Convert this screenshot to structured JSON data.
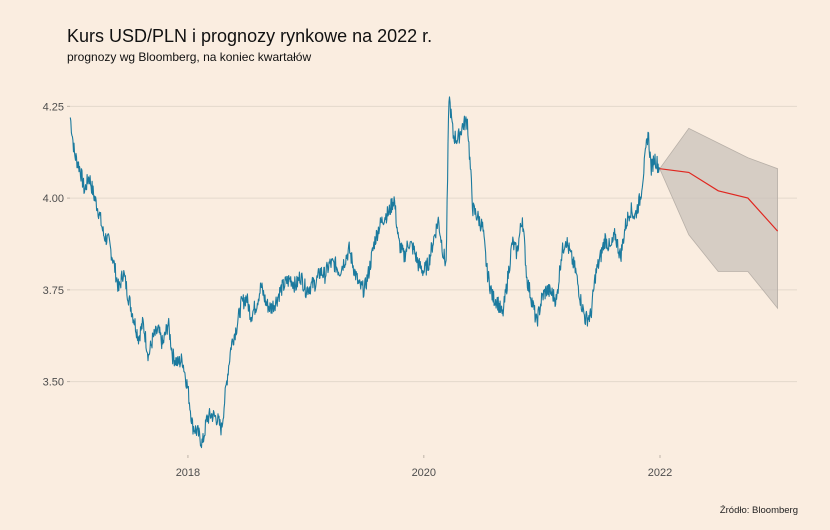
{
  "title": "Kurs USD/PLN i prognozy rynkowe na 2022 r.",
  "subtitle": "prognozy wg Bloomberg, na koniec kwartałów",
  "source": "Źródło: Bloomberg",
  "colors": {
    "background": "#faede0",
    "history_line": "#1b7a9e",
    "forecast_line": "#e0261f",
    "forecast_band": "#c9c2bb",
    "grid": "#e3d8cc"
  },
  "chart_data": {
    "type": "line",
    "title": "Kurs USD/PLN i prognozy rynkowe na 2022 r.",
    "subtitle": "prognozy wg Bloomberg, na koniec kwartałów",
    "xlabel": "",
    "ylabel": "",
    "x_ticks": [
      "2018",
      "2020",
      "2022"
    ],
    "y_ticks": [
      "3.50",
      "3.75",
      "4.00",
      "4.25"
    ],
    "ylim": [
      3.3,
      4.3
    ],
    "xlim": [
      "2017-01-01",
      "2023-03-01"
    ],
    "grid": true,
    "legend": "none",
    "series": [
      {
        "role": "historical",
        "points": [
          [
            "2017-01-02",
            4.22
          ],
          [
            "2017-01-15",
            4.12
          ],
          [
            "2017-02-01",
            4.08
          ],
          [
            "2017-02-15",
            4.02
          ],
          [
            "2017-03-01",
            4.06
          ],
          [
            "2017-03-15",
            4.01
          ],
          [
            "2017-04-01",
            3.96
          ],
          [
            "2017-04-15",
            3.9
          ],
          [
            "2017-05-01",
            3.88
          ],
          [
            "2017-05-15",
            3.83
          ],
          [
            "2017-06-01",
            3.75
          ],
          [
            "2017-06-15",
            3.8
          ],
          [
            "2017-07-01",
            3.73
          ],
          [
            "2017-07-15",
            3.68
          ],
          [
            "2017-08-01",
            3.62
          ],
          [
            "2017-08-15",
            3.66
          ],
          [
            "2017-09-01",
            3.57
          ],
          [
            "2017-09-15",
            3.62
          ],
          [
            "2017-10-01",
            3.64
          ],
          [
            "2017-10-15",
            3.6
          ],
          [
            "2017-11-01",
            3.66
          ],
          [
            "2017-11-15",
            3.57
          ],
          [
            "2017-12-01",
            3.55
          ],
          [
            "2017-12-15",
            3.56
          ],
          [
            "2018-01-01",
            3.48
          ],
          [
            "2018-01-15",
            3.38
          ],
          [
            "2018-02-01",
            3.36
          ],
          [
            "2018-02-15",
            3.33
          ],
          [
            "2018-03-01",
            3.4
          ],
          [
            "2018-03-15",
            3.41
          ],
          [
            "2018-04-01",
            3.4
          ],
          [
            "2018-04-15",
            3.37
          ],
          [
            "2018-05-01",
            3.5
          ],
          [
            "2018-05-15",
            3.6
          ],
          [
            "2018-06-01",
            3.65
          ],
          [
            "2018-06-15",
            3.71
          ],
          [
            "2018-07-01",
            3.73
          ],
          [
            "2018-07-15",
            3.68
          ],
          [
            "2018-08-01",
            3.71
          ],
          [
            "2018-08-15",
            3.76
          ],
          [
            "2018-09-01",
            3.71
          ],
          [
            "2018-09-15",
            3.7
          ],
          [
            "2018-10-01",
            3.72
          ],
          [
            "2018-10-15",
            3.75
          ],
          [
            "2018-11-01",
            3.77
          ],
          [
            "2018-11-15",
            3.78
          ],
          [
            "2018-12-01",
            3.76
          ],
          [
            "2018-12-15",
            3.79
          ],
          [
            "2019-01-01",
            3.75
          ],
          [
            "2019-01-15",
            3.76
          ],
          [
            "2019-02-01",
            3.77
          ],
          [
            "2019-02-15",
            3.8
          ],
          [
            "2019-03-01",
            3.79
          ],
          [
            "2019-03-15",
            3.82
          ],
          [
            "2019-04-01",
            3.82
          ],
          [
            "2019-04-15",
            3.8
          ],
          [
            "2019-05-01",
            3.83
          ],
          [
            "2019-05-15",
            3.86
          ],
          [
            "2019-06-01",
            3.8
          ],
          [
            "2019-06-15",
            3.76
          ],
          [
            "2019-07-01",
            3.75
          ],
          [
            "2019-07-15",
            3.8
          ],
          [
            "2019-08-01",
            3.88
          ],
          [
            "2019-08-15",
            3.92
          ],
          [
            "2019-09-01",
            3.95
          ],
          [
            "2019-09-15",
            3.96
          ],
          [
            "2019-10-01",
            4.0
          ],
          [
            "2019-10-15",
            3.88
          ],
          [
            "2019-11-01",
            3.84
          ],
          [
            "2019-11-15",
            3.88
          ],
          [
            "2019-12-01",
            3.86
          ],
          [
            "2019-12-15",
            3.82
          ],
          [
            "2020-01-01",
            3.8
          ],
          [
            "2020-01-15",
            3.82
          ],
          [
            "2020-02-01",
            3.89
          ],
          [
            "2020-02-15",
            3.94
          ],
          [
            "2020-03-01",
            3.85
          ],
          [
            "2020-03-10",
            3.82
          ],
          [
            "2020-03-19",
            4.28
          ],
          [
            "2020-04-01",
            4.17
          ],
          [
            "2020-04-15",
            4.16
          ],
          [
            "2020-05-01",
            4.2
          ],
          [
            "2020-05-15",
            4.21
          ],
          [
            "2020-06-01",
            3.97
          ],
          [
            "2020-06-15",
            3.95
          ],
          [
            "2020-07-01",
            3.92
          ],
          [
            "2020-07-15",
            3.8
          ],
          [
            "2020-08-01",
            3.73
          ],
          [
            "2020-08-15",
            3.72
          ],
          [
            "2020-09-01",
            3.68
          ],
          [
            "2020-09-15",
            3.77
          ],
          [
            "2020-10-01",
            3.88
          ],
          [
            "2020-10-15",
            3.85
          ],
          [
            "2020-11-01",
            3.95
          ],
          [
            "2020-11-15",
            3.78
          ],
          [
            "2020-12-01",
            3.72
          ],
          [
            "2020-12-15",
            3.66
          ],
          [
            "2021-01-01",
            3.73
          ],
          [
            "2021-01-15",
            3.75
          ],
          [
            "2021-02-01",
            3.74
          ],
          [
            "2021-02-15",
            3.72
          ],
          [
            "2021-03-01",
            3.84
          ],
          [
            "2021-03-15",
            3.89
          ],
          [
            "2021-04-01",
            3.84
          ],
          [
            "2021-04-15",
            3.8
          ],
          [
            "2021-05-01",
            3.72
          ],
          [
            "2021-05-15",
            3.67
          ],
          [
            "2021-06-01",
            3.68
          ],
          [
            "2021-06-15",
            3.79
          ],
          [
            "2021-07-01",
            3.84
          ],
          [
            "2021-07-15",
            3.89
          ],
          [
            "2021-08-01",
            3.86
          ],
          [
            "2021-08-15",
            3.9
          ],
          [
            "2021-09-01",
            3.84
          ],
          [
            "2021-09-15",
            3.92
          ],
          [
            "2021-10-01",
            3.97
          ],
          [
            "2021-10-15",
            3.95
          ],
          [
            "2021-11-01",
            4.0
          ],
          [
            "2021-11-15",
            4.1
          ],
          [
            "2021-11-25",
            4.18
          ],
          [
            "2021-12-05",
            4.08
          ],
          [
            "2021-12-15",
            4.11
          ],
          [
            "2021-12-31",
            4.08
          ]
        ]
      },
      {
        "role": "forecast_median",
        "points": [
          [
            "2021-12-31",
            4.08
          ],
          [
            "2022-03-31",
            4.07
          ],
          [
            "2022-06-30",
            4.02
          ],
          [
            "2022-09-30",
            4.0
          ],
          [
            "2022-12-31",
            3.91
          ]
        ]
      }
    ],
    "band": {
      "role": "forecast_range",
      "upper": [
        [
          "2021-12-31",
          4.08
        ],
        [
          "2022-03-31",
          4.19
        ],
        [
          "2022-06-30",
          4.15
        ],
        [
          "2022-09-30",
          4.11
        ],
        [
          "2022-12-31",
          4.08
        ]
      ],
      "lower": [
        [
          "2021-12-31",
          4.08
        ],
        [
          "2022-03-31",
          3.9
        ],
        [
          "2022-06-30",
          3.8
        ],
        [
          "2022-09-30",
          3.8
        ],
        [
          "2022-12-31",
          3.7
        ]
      ]
    }
  }
}
